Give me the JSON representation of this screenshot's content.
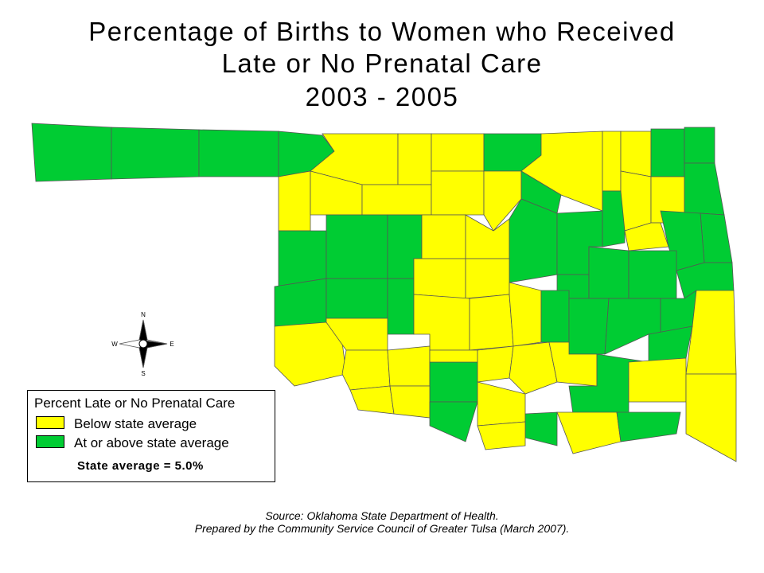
{
  "title": [
    "Percentage of Births to Women who Received",
    "Late or No Prenatal Care",
    "2003 - 2005"
  ],
  "compass": {
    "n": "N",
    "w": "W",
    "e": "E",
    "s": "S"
  },
  "legend": {
    "title": "Percent Late or No Prenatal Care",
    "items": [
      {
        "label": "Below state average",
        "color": "#ffff00"
      },
      {
        "label": "At or above state average",
        "color": "#00cc33"
      }
    ],
    "note": "State average = 5.0%"
  },
  "source": [
    "Source:  Oklahoma State Department of Health.",
    "Prepared by the Community Service Council of Greater Tulsa (March 2007)."
  ]
}
